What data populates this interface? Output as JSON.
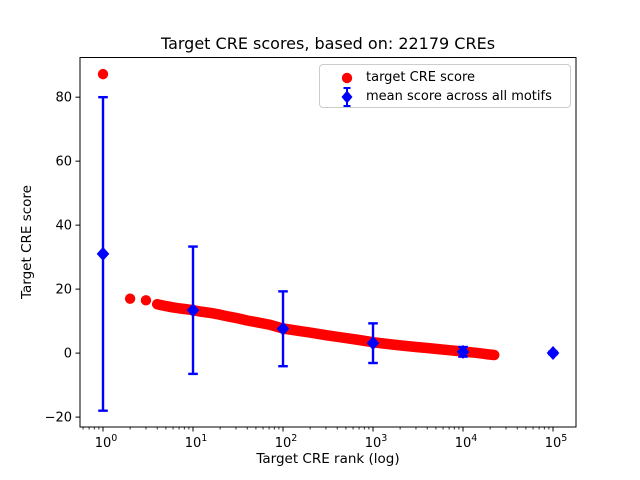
{
  "window": {
    "background": "#ffffff"
  },
  "chart_data": {
    "type": "scatter",
    "title": "Target CRE scores, based on: 22179 CREs",
    "xlabel": "Target CRE rank (log)",
    "ylabel": "Target CRE score",
    "x_scale": "log",
    "xlim": [
      0.555,
      180000
    ],
    "ylim": [
      -23.1,
      92.4
    ],
    "x_ticks": [
      1,
      10,
      100,
      1000,
      10000,
      100000
    ],
    "x_tick_exponents": [
      "0",
      "1",
      "2",
      "3",
      "4",
      "5"
    ],
    "y_ticks": [
      -20,
      0,
      20,
      40,
      60,
      80
    ],
    "y_tick_labels": [
      "−20",
      "0",
      "20",
      "40",
      "60",
      "80"
    ],
    "grid": false,
    "colors": {
      "target_score": "#ff0000",
      "mean_score": "#0000ff",
      "spine": "#000000"
    },
    "legend": {
      "position": "upper right",
      "entries": [
        {
          "label": "target CRE score",
          "marker": "circle",
          "color": "#ff0000"
        },
        {
          "label": "mean score across all motifs",
          "marker": "diamond-errorbar",
          "color": "#0000ff"
        }
      ]
    },
    "series": [
      {
        "name": "target CRE score",
        "type": "scatter",
        "marker": "circle",
        "color": "#ff0000",
        "n_points": 22179,
        "sampled_points": [
          [
            1,
            87.2
          ],
          [
            2,
            17.0
          ],
          [
            3,
            16.5
          ],
          [
            4,
            15.3
          ],
          [
            5,
            14.7
          ],
          [
            6,
            14.3
          ],
          [
            7,
            14.0
          ],
          [
            8,
            13.8
          ],
          [
            9,
            13.6
          ],
          [
            10,
            13.4
          ],
          [
            12,
            13.0
          ],
          [
            16,
            12.5
          ],
          [
            20,
            12.0
          ],
          [
            25,
            11.4
          ],
          [
            30,
            11.0
          ],
          [
            40,
            10.2
          ],
          [
            50,
            9.7
          ],
          [
            70,
            8.9
          ],
          [
            100,
            7.7
          ],
          [
            130,
            7.2
          ],
          [
            160,
            6.8
          ],
          [
            200,
            6.4
          ],
          [
            300,
            5.6
          ],
          [
            400,
            5.1
          ],
          [
            500,
            4.7
          ],
          [
            700,
            4.1
          ],
          [
            1000,
            3.4
          ],
          [
            1500,
            2.8
          ],
          [
            2000,
            2.4
          ],
          [
            3000,
            1.9
          ],
          [
            4000,
            1.6
          ],
          [
            5000,
            1.3
          ],
          [
            7000,
            0.9
          ],
          [
            10000,
            0.5
          ],
          [
            14000,
            0.1
          ],
          [
            18000,
            -0.3
          ],
          [
            22179,
            -0.6
          ]
        ]
      },
      {
        "name": "mean score across all motifs",
        "type": "errorbar",
        "marker": "diamond",
        "color": "#0000ff",
        "x": [
          1,
          10,
          100,
          1000,
          10000,
          100000
        ],
        "y": [
          31.0,
          13.4,
          7.6,
          3.1,
          0.4,
          0.05
        ],
        "yerr": [
          49.0,
          19.9,
          11.7,
          6.2,
          1.5,
          0.4
        ]
      }
    ]
  }
}
